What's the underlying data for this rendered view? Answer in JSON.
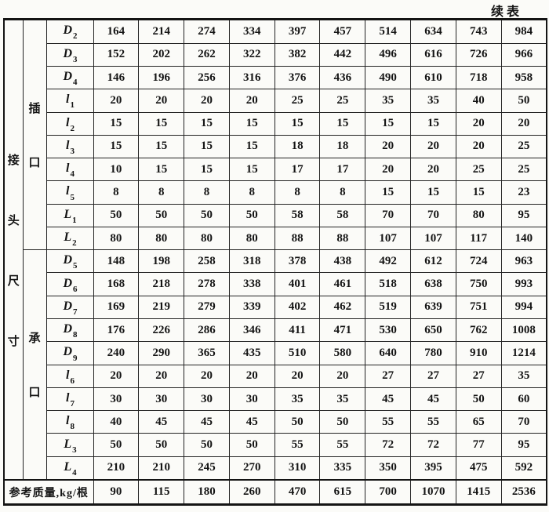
{
  "page": {
    "continued_label": "续表"
  },
  "colors": {
    "ink": "#141414",
    "paper": "#fbfbf8"
  },
  "table": {
    "side_header_chars": [
      "接",
      "头",
      "尺",
      "寸"
    ],
    "groups": [
      {
        "name": "spigot",
        "chars": [
          "插",
          "口"
        ],
        "rows": [
          {
            "base": "D",
            "sub": "2",
            "values": [
              "164",
              "214",
              "274",
              "334",
              "397",
              "457",
              "514",
              "634",
              "743",
              "984"
            ]
          },
          {
            "base": "D",
            "sub": "3",
            "values": [
              "152",
              "202",
              "262",
              "322",
              "382",
              "442",
              "496",
              "616",
              "726",
              "966"
            ]
          },
          {
            "base": "D",
            "sub": "4",
            "values": [
              "146",
              "196",
              "256",
              "316",
              "376",
              "436",
              "490",
              "610",
              "718",
              "958"
            ]
          },
          {
            "base": "l",
            "sub": "1",
            "values": [
              "20",
              "20",
              "20",
              "20",
              "25",
              "25",
              "35",
              "35",
              "40",
              "50"
            ]
          },
          {
            "base": "l",
            "sub": "2",
            "values": [
              "15",
              "15",
              "15",
              "15",
              "15",
              "15",
              "15",
              "15",
              "20",
              "20"
            ]
          },
          {
            "base": "l",
            "sub": "3",
            "values": [
              "15",
              "15",
              "15",
              "15",
              "18",
              "18",
              "20",
              "20",
              "20",
              "25"
            ]
          },
          {
            "base": "l",
            "sub": "4",
            "values": [
              "10",
              "15",
              "15",
              "15",
              "17",
              "17",
              "20",
              "20",
              "25",
              "25"
            ]
          },
          {
            "base": "l",
            "sub": "5",
            "values": [
              "8",
              "8",
              "8",
              "8",
              "8",
              "8",
              "15",
              "15",
              "15",
              "23"
            ]
          },
          {
            "base": "L",
            "sub": "1",
            "values": [
              "50",
              "50",
              "50",
              "50",
              "58",
              "58",
              "70",
              "70",
              "80",
              "95"
            ]
          },
          {
            "base": "L",
            "sub": "2",
            "values": [
              "80",
              "80",
              "80",
              "80",
              "88",
              "88",
              "107",
              "107",
              "117",
              "140"
            ]
          }
        ]
      },
      {
        "name": "socket",
        "chars": [
          "承",
          "口"
        ],
        "rows": [
          {
            "base": "D",
            "sub": "5",
            "values": [
              "148",
              "198",
              "258",
              "318",
              "378",
              "438",
              "492",
              "612",
              "724",
              "963"
            ]
          },
          {
            "base": "D",
            "sub": "6",
            "values": [
              "168",
              "218",
              "278",
              "338",
              "401",
              "461",
              "518",
              "638",
              "750",
              "993"
            ]
          },
          {
            "base": "D",
            "sub": "7",
            "values": [
              "169",
              "219",
              "279",
              "339",
              "402",
              "462",
              "519",
              "639",
              "751",
              "994"
            ]
          },
          {
            "base": "D",
            "sub": "8",
            "values": [
              "176",
              "226",
              "286",
              "346",
              "411",
              "471",
              "530",
              "650",
              "762",
              "1008"
            ]
          },
          {
            "base": "D",
            "sub": "9",
            "values": [
              "240",
              "290",
              "365",
              "435",
              "510",
              "580",
              "640",
              "780",
              "910",
              "1214"
            ]
          },
          {
            "base": "l",
            "sub": "6",
            "values": [
              "20",
              "20",
              "20",
              "20",
              "20",
              "20",
              "27",
              "27",
              "27",
              "35"
            ]
          },
          {
            "base": "l",
            "sub": "7",
            "values": [
              "30",
              "30",
              "30",
              "30",
              "35",
              "35",
              "45",
              "45",
              "50",
              "60"
            ]
          },
          {
            "base": "l",
            "sub": "8",
            "values": [
              "40",
              "45",
              "45",
              "45",
              "50",
              "50",
              "55",
              "55",
              "65",
              "70"
            ]
          },
          {
            "base": "L",
            "sub": "3",
            "values": [
              "50",
              "50",
              "50",
              "50",
              "55",
              "55",
              "72",
              "72",
              "77",
              "95"
            ]
          },
          {
            "base": "L",
            "sub": "4",
            "values": [
              "210",
              "210",
              "245",
              "270",
              "310",
              "335",
              "350",
              "395",
              "475",
              "592"
            ]
          }
        ]
      }
    ],
    "footer": {
      "label": "参考质量,kg/根",
      "values": [
        "90",
        "115",
        "180",
        "260",
        "470",
        "615",
        "700",
        "1070",
        "1415",
        "2536"
      ]
    }
  }
}
